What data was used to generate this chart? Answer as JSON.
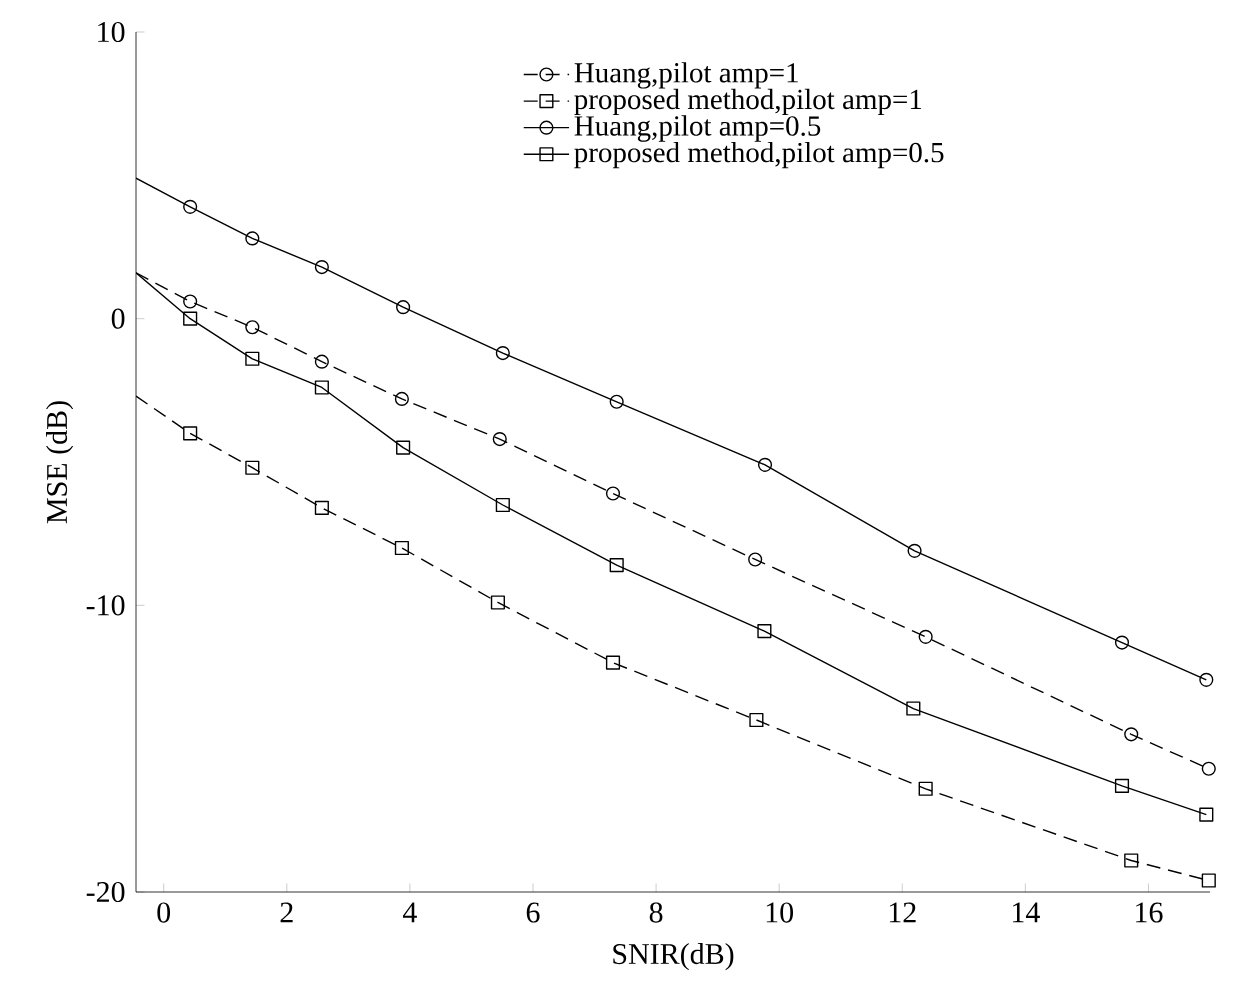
{
  "chart_data": {
    "type": "line",
    "xlabel": "SNIR(dB)",
    "ylabel": "MSE (dB)",
    "xlim": [
      -0.45,
      17
    ],
    "ylim": [
      -20,
      10
    ],
    "xticks": [
      0,
      2,
      4,
      6,
      8,
      10,
      12,
      14,
      16
    ],
    "yticks": [
      -20,
      -10,
      0,
      10
    ],
    "grid": false,
    "legend": "top right",
    "series": [
      {
        "name": "Huang,pilot amp=1",
        "color": "#000000",
        "marker": "circle",
        "line_style": "dashed",
        "x": [
          -0.45,
          0.43,
          1.44,
          2.57,
          3.87,
          5.46,
          7.3,
          9.61,
          12.38,
          15.72,
          16.98
        ],
        "values": [
          1.6,
          0.6,
          -0.3,
          -1.5,
          -2.8,
          -4.2,
          -6.1,
          -8.4,
          -11.1,
          -14.5,
          -15.7
        ]
      },
      {
        "name": "proposed method,pilot amp=1",
        "color": "#000000",
        "marker": "square",
        "line_style": "dashed",
        "x": [
          -0.45,
          0.43,
          1.44,
          2.57,
          3.87,
          5.43,
          7.3,
          9.63,
          12.38,
          15.72,
          16.98
        ],
        "values": [
          -2.7,
          -4.0,
          -5.2,
          -6.6,
          -8.0,
          -9.9,
          -12.0,
          -14.0,
          -16.4,
          -18.9,
          -19.6
        ]
      },
      {
        "name": "Huang,pilot amp=0.5",
        "color": "#000000",
        "marker": "circle",
        "line_style": "solid",
        "x": [
          -0.45,
          0.43,
          1.44,
          2.57,
          3.89,
          5.51,
          7.36,
          9.77,
          12.2,
          15.57,
          16.94
        ],
        "values": [
          4.9,
          3.9,
          2.8,
          1.8,
          0.4,
          -1.2,
          -2.9,
          -5.1,
          -8.1,
          -11.3,
          -12.6
        ]
      },
      {
        "name": "proposed method,pilot amp=0.5",
        "color": "#000000",
        "marker": "square",
        "line_style": "solid",
        "x": [
          -0.45,
          0.43,
          1.44,
          2.57,
          3.89,
          5.51,
          7.36,
          9.76,
          12.18,
          15.57,
          16.94
        ],
        "values": [
          1.6,
          0.0,
          -1.4,
          -2.4,
          -4.5,
          -6.5,
          -8.6,
          -10.9,
          -13.6,
          -16.3,
          -17.3
        ]
      }
    ]
  }
}
